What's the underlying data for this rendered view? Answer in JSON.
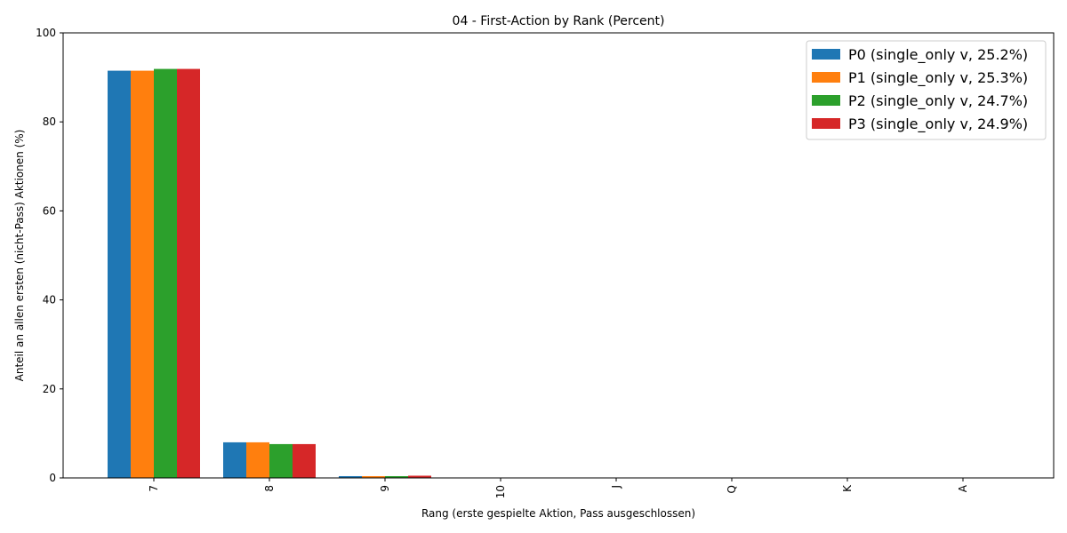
{
  "chart_data": {
    "type": "bar",
    "title": "04 - First-Action by Rank (Percent)",
    "xlabel": "Rang (erste gespielte Aktion, Pass ausgeschlossen)",
    "ylabel": "Anteil an allen ersten (nicht-Pass) Aktionen (%)",
    "categories": [
      "7",
      "8",
      "9",
      "10",
      "J",
      "Q",
      "K",
      "A"
    ],
    "ylim": [
      0,
      100
    ],
    "yticks": [
      0,
      20,
      40,
      60,
      80,
      100
    ],
    "grid": false,
    "legend_position": "top-right",
    "series": [
      {
        "name": "P0 (single_only v, 25.2%)",
        "color": "#1f77b4",
        "values": [
          91.5,
          8.0,
          0.4,
          0,
          0,
          0,
          0,
          0
        ]
      },
      {
        "name": "P1 (single_only v, 25.3%)",
        "color": "#ff7f0e",
        "values": [
          91.5,
          8.0,
          0.4,
          0,
          0,
          0,
          0,
          0
        ]
      },
      {
        "name": "P2 (single_only v, 24.7%)",
        "color": "#2ca02c",
        "values": [
          91.9,
          7.6,
          0.4,
          0,
          0,
          0,
          0,
          0
        ]
      },
      {
        "name": "P3 (single_only v, 24.9%)",
        "color": "#d62728",
        "values": [
          91.9,
          7.6,
          0.5,
          0,
          0,
          0,
          0,
          0
        ]
      }
    ]
  }
}
